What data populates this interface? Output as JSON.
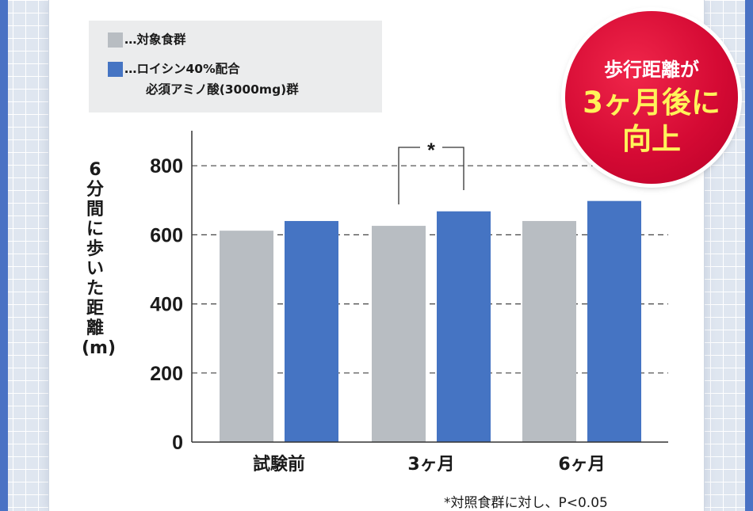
{
  "colors": {
    "control": "#b8bdc2",
    "treatment": "#4574c3",
    "badge": "#d50a34",
    "badge_highlight": "#fff35a"
  },
  "legend": {
    "items": [
      {
        "label": "…対象食群",
        "color": "#b8bdc2"
      },
      {
        "label": "…ロイシン40%配合",
        "sublabel": "必須アミノ酸(3000mg)群",
        "color": "#4574c3"
      }
    ]
  },
  "badge": {
    "line1": "歩行距離が",
    "line2": "3ヶ月後に",
    "line3": "向上"
  },
  "footnote": "*対照食群に対し、P<0.05",
  "chart_data": {
    "type": "bar",
    "title": "",
    "xlabel": "",
    "ylabel": "6分間に歩いた距離(m)",
    "ylim": [
      0,
      900
    ],
    "yticks": [
      0,
      200,
      400,
      600,
      800
    ],
    "grid": "dashed horizontal",
    "legend_position": "top-left",
    "categories": [
      "試験前",
      "3ヶ月",
      "6ヶ月"
    ],
    "series": [
      {
        "name": "…対象食群",
        "values": [
          612,
          626,
          640
        ]
      },
      {
        "name": "…ロイシン40%配合 必須アミノ酸(3000mg)群",
        "values": [
          640,
          668,
          698
        ]
      }
    ],
    "annotations": [
      {
        "text": "*",
        "category": "3ヶ月",
        "type": "significance_bracket"
      }
    ]
  }
}
